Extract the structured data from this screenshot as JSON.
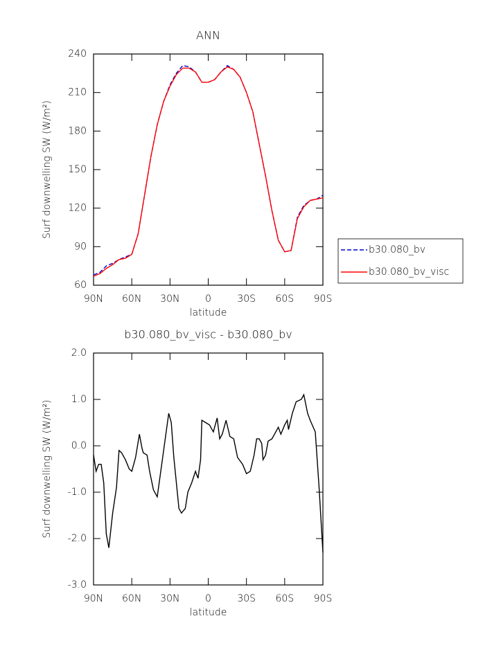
{
  "chart_data": [
    {
      "type": "line",
      "title": "ANN",
      "xlabel": "latitude",
      "ylabel": "Surf downwelling SW (W/m²)",
      "x": [
        90,
        85,
        80,
        75,
        70,
        65,
        60,
        55,
        50,
        45,
        40,
        35,
        30,
        25,
        20,
        15,
        10,
        5,
        0,
        -5,
        -10,
        -15,
        -20,
        -25,
        -30,
        -35,
        -40,
        -45,
        -50,
        -55,
        -60,
        -65,
        -70,
        -75,
        -80,
        -85,
        -90
      ],
      "series": [
        {
          "name": "b30.080_bv",
          "color": "#0000cc",
          "linestyle": "dashed",
          "values": [
            68,
            70,
            75,
            77,
            80,
            82,
            84,
            100,
            130,
            160,
            185,
            203,
            216,
            225,
            231,
            230,
            226,
            218,
            218,
            220,
            226,
            231,
            228,
            222,
            210,
            195,
            170,
            145,
            118,
            95,
            86,
            87,
            113,
            122,
            126,
            127,
            130
          ]
        },
        {
          "name": "b30.080_bv_visc",
          "color": "#ff0000",
          "linestyle": "solid",
          "values": [
            67,
            69,
            73,
            76,
            80,
            81,
            84,
            100,
            130,
            160,
            185,
            203,
            215,
            224,
            229,
            229,
            226,
            218,
            218,
            220,
            226,
            230,
            228,
            222,
            210,
            195,
            170,
            145,
            118,
            95,
            86,
            87,
            112,
            121,
            126,
            127,
            128
          ]
        }
      ],
      "xlim": [
        90,
        -90
      ],
      "xticks": [
        {
          "value": 90,
          "label": "90N"
        },
        {
          "value": 60,
          "label": "60N"
        },
        {
          "value": 30,
          "label": "30N"
        },
        0,
        {
          "value": -30,
          "label": "30S"
        },
        {
          "value": -60,
          "label": "60S"
        },
        {
          "value": -90,
          "label": "90S"
        }
      ],
      "ylim": [
        60,
        240
      ],
      "yticks": [
        60,
        90,
        120,
        150,
        180,
        210,
        240
      ],
      "legend": "right"
    },
    {
      "type": "line",
      "title": "b30.080_bv_visc - b30.080_bv",
      "xlabel": "latitude",
      "ylabel": "Surf downwelling SW (W/m²)",
      "x": [
        90,
        88,
        86,
        84,
        82,
        80,
        78,
        75,
        72,
        70,
        68,
        65,
        62,
        60,
        57,
        54,
        52,
        51,
        48,
        46,
        43,
        40,
        38,
        35,
        31,
        29,
        27,
        25,
        23,
        21,
        18,
        16,
        13,
        10,
        8,
        6,
        5,
        2,
        -1,
        -4,
        -7,
        -9,
        -11,
        -14,
        -17,
        -20,
        -23,
        -27,
        -30,
        -33,
        -36,
        -38,
        -40,
        -42,
        -43,
        -45,
        -47,
        -50,
        -53,
        -55,
        -57,
        -60,
        -62,
        -63,
        -66,
        -69,
        -73,
        -75,
        -78,
        -80,
        -84,
        -87,
        -90
      ],
      "series": [
        {
          "color": "#000000",
          "linestyle": "solid",
          "values": [
            -0.2,
            -0.55,
            -0.4,
            -0.4,
            -0.8,
            -1.9,
            -2.2,
            -1.45,
            -0.9,
            -0.1,
            -0.15,
            -0.3,
            -0.5,
            -0.55,
            -0.25,
            0.25,
            -0.05,
            -0.15,
            -0.2,
            -0.55,
            -0.95,
            -1.1,
            -0.7,
            -0.1,
            0.7,
            0.5,
            -0.25,
            -0.8,
            -1.35,
            -1.45,
            -1.35,
            -1.0,
            -0.8,
            -0.55,
            -0.7,
            -0.3,
            0.55,
            0.5,
            0.45,
            0.3,
            0.6,
            0.15,
            0.25,
            0.55,
            0.2,
            0.15,
            -0.25,
            -0.4,
            -0.6,
            -0.55,
            -0.2,
            0.15,
            0.15,
            0.05,
            -0.3,
            -0.2,
            0.1,
            0.15,
            0.3,
            0.4,
            0.25,
            0.45,
            0.55,
            0.35,
            0.7,
            0.95,
            1.0,
            1.1,
            0.7,
            0.55,
            0.3,
            -0.9,
            -2.3
          ]
        }
      ],
      "xlim": [
        90,
        -90
      ],
      "xticks": [
        {
          "value": 90,
          "label": "90N"
        },
        {
          "value": 60,
          "label": "60N"
        },
        {
          "value": 30,
          "label": "30N"
        },
        0,
        {
          "value": -30,
          "label": "30S"
        },
        {
          "value": -60,
          "label": "60S"
        },
        {
          "value": -90,
          "label": "90S"
        }
      ],
      "ylim": [
        -3,
        2
      ],
      "yticks": [
        {
          "value": -3,
          "label": "-3.0"
        },
        {
          "value": -2,
          "label": "-2.0"
        },
        {
          "value": -1,
          "label": "-1.0"
        },
        {
          "value": 0,
          "label": "0.0"
        },
        {
          "value": 1,
          "label": "1.0"
        },
        {
          "value": 2,
          "label": "2.0"
        }
      ]
    }
  ]
}
